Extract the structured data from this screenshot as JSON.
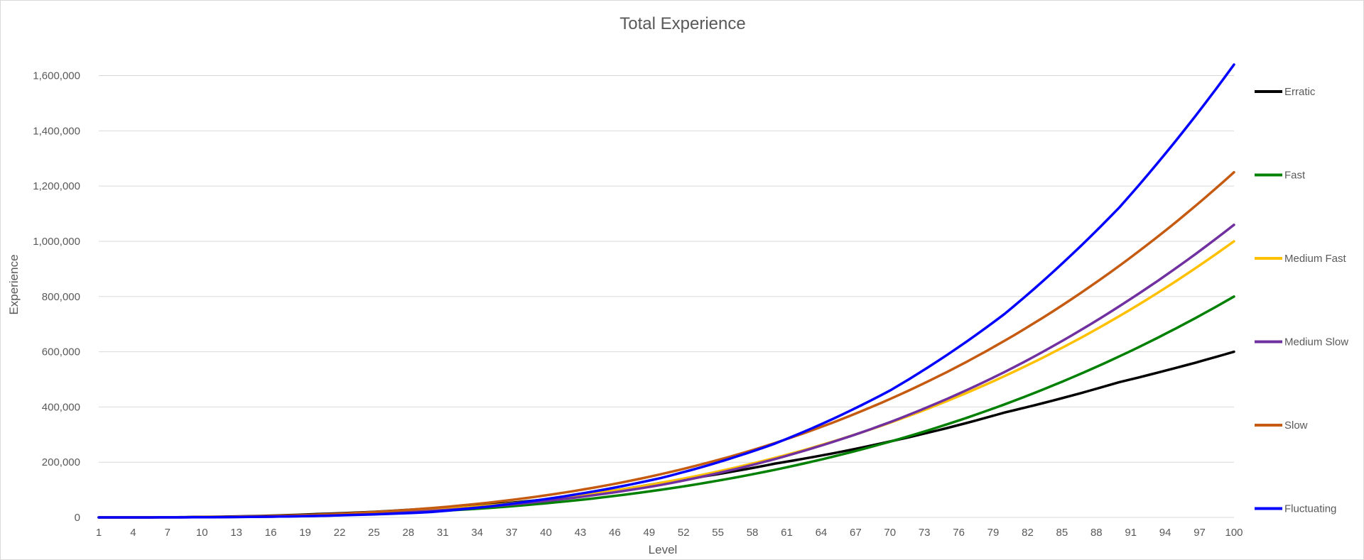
{
  "chart_data": {
    "type": "line",
    "title": "Total Experience",
    "xlabel": "Level",
    "ylabel": "Experience",
    "x_range": [
      1,
      100
    ],
    "x_tick_labels": [
      "1",
      "4",
      "7",
      "10",
      "13",
      "16",
      "19",
      "22",
      "25",
      "28",
      "31",
      "34",
      "37",
      "40",
      "43",
      "46",
      "49",
      "52",
      "55",
      "58",
      "61",
      "64",
      "67",
      "70",
      "73",
      "76",
      "79",
      "82",
      "85",
      "88",
      "91",
      "94",
      "97",
      "100"
    ],
    "ylim": [
      0,
      1640000
    ],
    "y_ticks": [
      0,
      200000,
      400000,
      600000,
      800000,
      1000000,
      1200000,
      1400000,
      1600000
    ],
    "y_tick_labels": [
      "0",
      "200,000",
      "400,000",
      "600,000",
      "800,000",
      "1,000,000",
      "1,200,000",
      "1,400,000",
      "1,600,000"
    ],
    "grid": "horizontal",
    "legend_position": "right",
    "series": [
      {
        "name": "Erratic",
        "color": "#000000",
        "x": [
          1,
          10,
          20,
          30,
          40,
          50,
          60,
          70,
          80,
          90,
          100
        ],
        "values": [
          0,
          1800,
          12000,
          33000,
          65000,
          125000,
          195000,
          275000,
          380000,
          490000,
          600000
        ]
      },
      {
        "name": "Fast",
        "color": "#008000",
        "x": [
          1,
          10,
          20,
          30,
          40,
          50,
          60,
          70,
          80,
          90,
          100
        ],
        "values": [
          0,
          800,
          6400,
          21600,
          51200,
          100000,
          172800,
          274400,
          409600,
          583200,
          800000
        ]
      },
      {
        "name": "Medium Fast",
        "color": "#ffc000",
        "x": [
          1,
          10,
          20,
          30,
          40,
          50,
          60,
          70,
          80,
          90,
          100
        ],
        "values": [
          0,
          1000,
          8000,
          27000,
          64000,
          125000,
          216000,
          343000,
          512000,
          729000,
          1000000
        ]
      },
      {
        "name": "Medium Slow",
        "color": "#7030a0",
        "x": [
          1,
          10,
          20,
          30,
          40,
          50,
          60,
          70,
          80,
          90,
          100
        ],
        "values": [
          0,
          560,
          5460,
          23760,
          59440,
          117360,
          211680,
          344960,
          526720,
          764760,
          1059860
        ]
      },
      {
        "name": "Slow",
        "color": "#c55a11",
        "x": [
          1,
          10,
          20,
          30,
          40,
          50,
          60,
          70,
          80,
          90,
          100
        ],
        "values": [
          0,
          1250,
          10000,
          33750,
          80000,
          156250,
          270000,
          428750,
          640000,
          911250,
          1250000
        ]
      },
      {
        "name": "Fluctuating",
        "color": "#0000ff",
        "x": [
          1,
          10,
          20,
          30,
          40,
          50,
          60,
          70,
          80,
          90,
          100
        ],
        "values": [
          0,
          540,
          5440,
          19440,
          66560,
          142500,
          267840,
          459620,
          737280,
          1122660,
          1640000
        ]
      }
    ]
  }
}
